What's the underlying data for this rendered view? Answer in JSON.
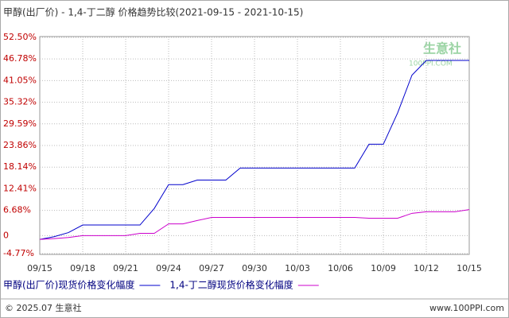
{
  "chart_data": {
    "type": "line",
    "title": "甲醇(出厂价) - 1,4-丁二醇 价格趋势比较(2021-09-15 - 2021-10-15)",
    "categories": [
      "09/15",
      null,
      null,
      "09/18",
      null,
      null,
      "09/21",
      null,
      null,
      "09/24",
      null,
      null,
      "09/27",
      null,
      null,
      "09/30",
      null,
      null,
      "10/03",
      null,
      null,
      "10/06",
      null,
      null,
      "10/09",
      null,
      null,
      "10/12",
      null,
      null,
      "10/15"
    ],
    "series": [
      {
        "name": "甲醇(出厂价)现货价格变化幅度",
        "color": "#0000cc",
        "values": [
          -1.0,
          -0.3,
          0.8,
          2.8,
          2.8,
          2.8,
          2.8,
          2.8,
          7.2,
          13.5,
          13.5,
          14.7,
          14.7,
          14.7,
          17.9,
          17.9,
          17.9,
          17.9,
          17.9,
          17.9,
          17.9,
          17.9,
          17.9,
          24.2,
          24.2,
          32.5,
          42.5,
          46.4,
          46.4,
          46.4,
          46.4
        ]
      },
      {
        "name": "1,4-丁二醇现货价格变化幅度",
        "color": "#cc00cc",
        "values": [
          -1.0,
          -0.8,
          -0.5,
          0,
          0,
          0,
          0,
          0.6,
          0.6,
          3.1,
          3.1,
          4.0,
          4.8,
          4.8,
          4.8,
          4.8,
          4.8,
          4.8,
          4.8,
          4.8,
          4.8,
          4.8,
          4.8,
          4.6,
          4.6,
          4.6,
          5.9,
          6.3,
          6.3,
          6.3,
          6.9
        ]
      }
    ],
    "ylim": [
      -4.77,
      52.5
    ],
    "yticks": [
      {
        "value": -4.77,
        "label": "-4.77%"
      },
      0,
      {
        "value": 6.68,
        "label": "6.68%"
      },
      {
        "value": 12.41,
        "label": "12.41%"
      },
      {
        "value": 18.14,
        "label": "18.14%"
      },
      {
        "value": 23.86,
        "label": "23.86%"
      },
      {
        "value": 29.59,
        "label": "29.59%"
      },
      {
        "value": 35.32,
        "label": "35.32%"
      },
      {
        "value": 41.05,
        "label": "41.05%"
      },
      {
        "value": 46.78,
        "label": "46.78%"
      },
      {
        "value": 52.5,
        "label": "52.50%"
      }
    ],
    "grid": true,
    "watermark": "生意社",
    "watermark_sub": "100PPI.COM",
    "footer_left": "© 2025.07 生意社",
    "footer_right": "www.100PPI.com"
  }
}
